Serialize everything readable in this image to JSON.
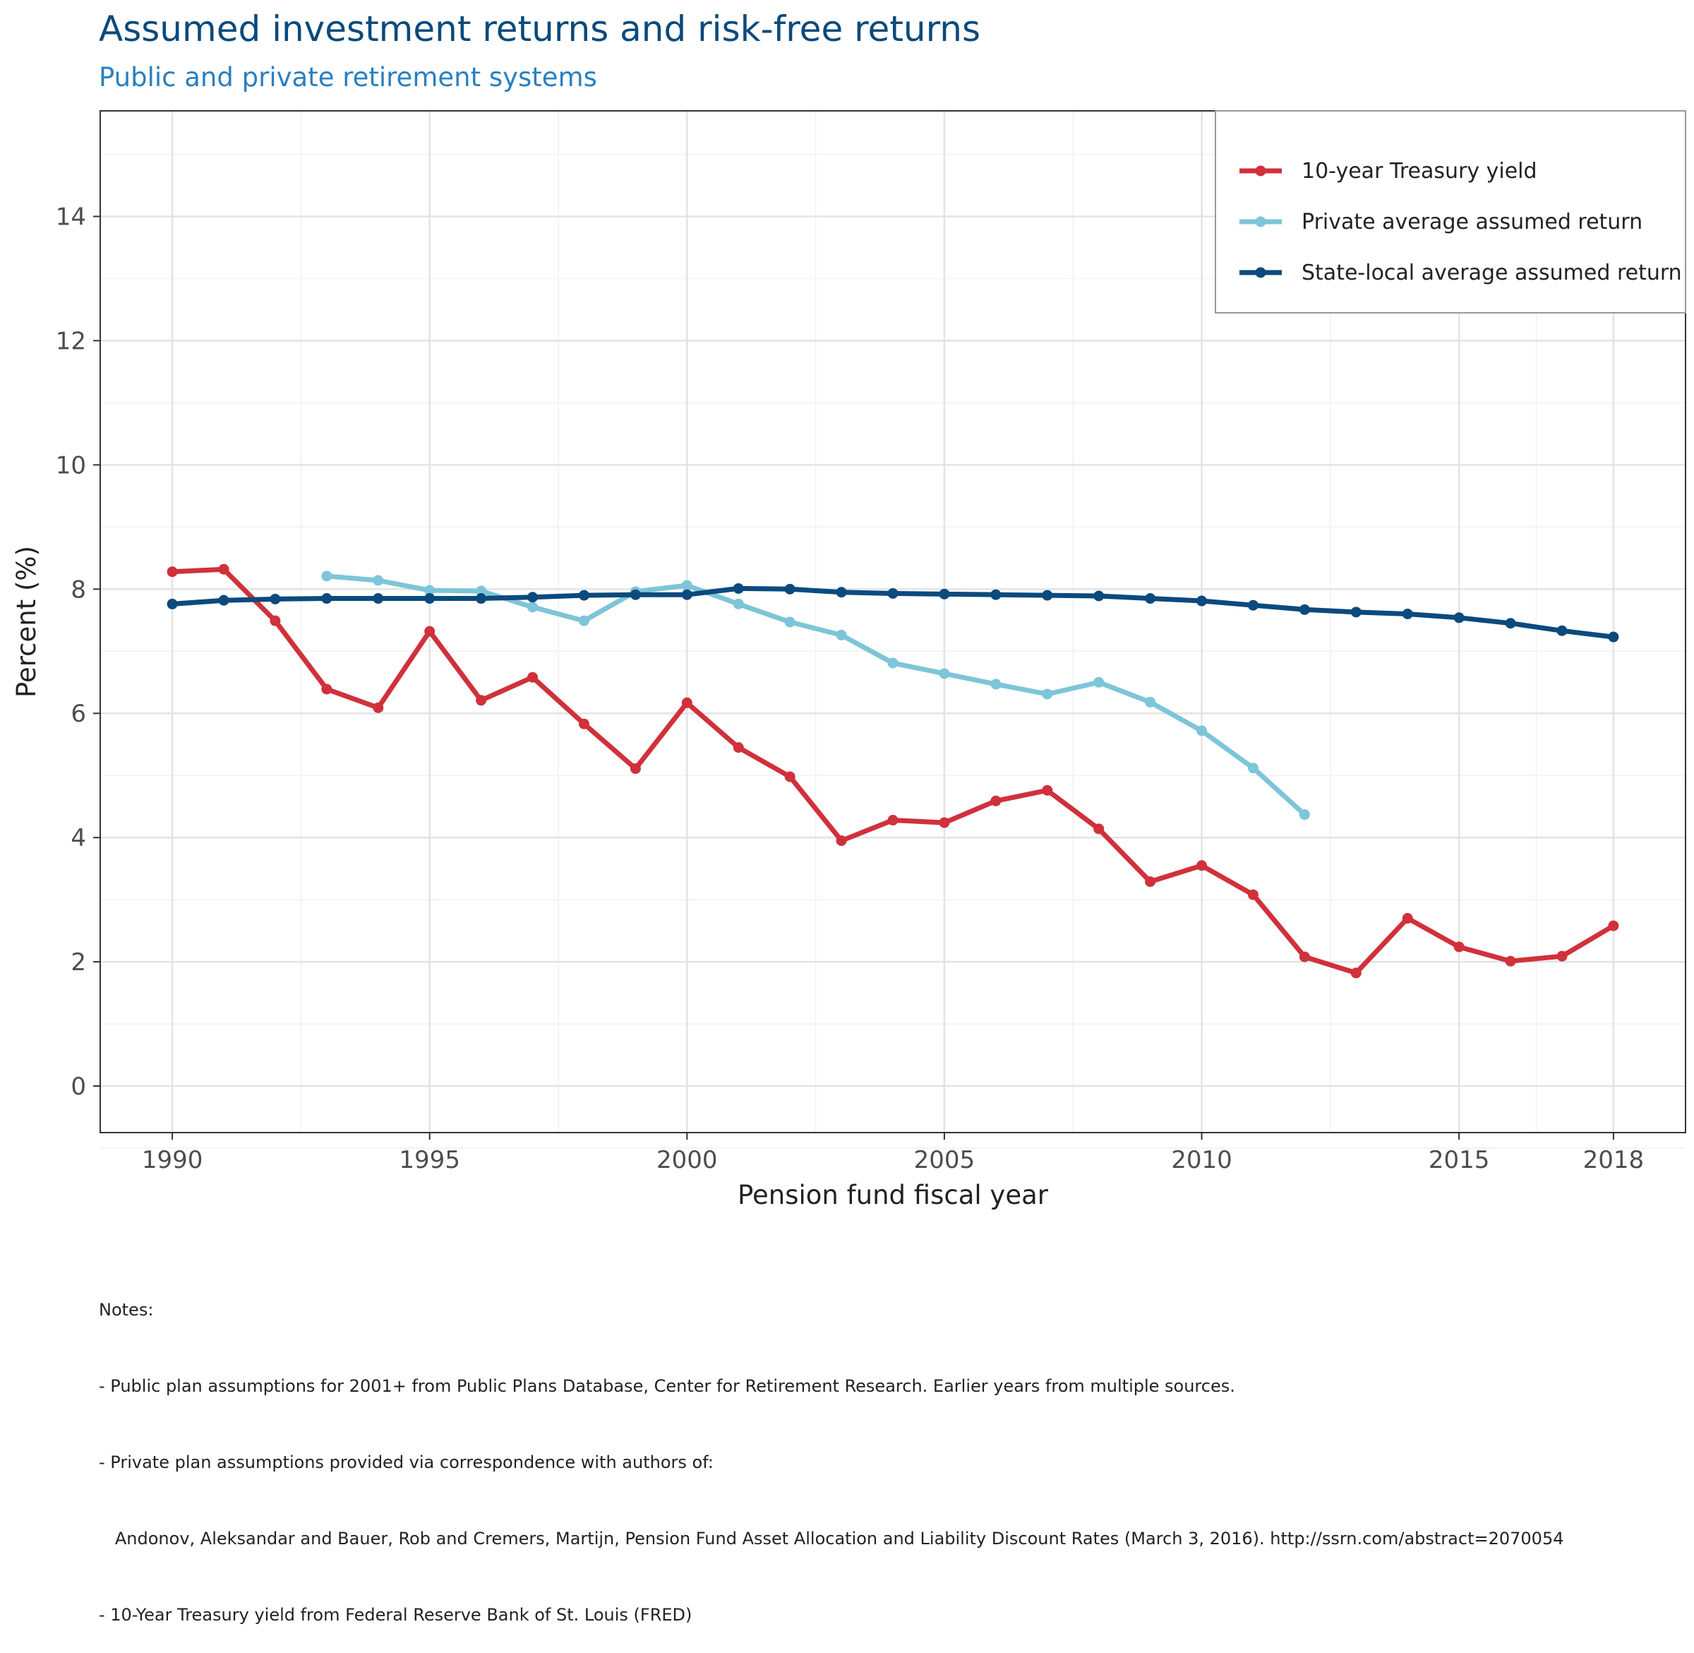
{
  "title": "Assumed investment returns and risk-free returns",
  "subtitle": "Public and private retirement systems",
  "chart_data": {
    "type": "line",
    "title": "Assumed investment returns and risk-free returns",
    "subtitle": "Public and private retirement systems",
    "xlabel": "Pension fund fiscal year",
    "ylabel": "Percent (%)",
    "xlim": [
      1988.6,
      2019.4
    ],
    "ylim": [
      -0.75,
      15.7
    ],
    "x_ticks": [
      1990,
      1995,
      2000,
      2005,
      2010,
      2015,
      2018
    ],
    "x_tick_labels": [
      "1990",
      "1995",
      "2000",
      "2005",
      "2010",
      "2015",
      "2018"
    ],
    "y_ticks": [
      0,
      2,
      4,
      6,
      8,
      10,
      12,
      14
    ],
    "y_tick_labels": [
      "0",
      "2",
      "4",
      "6",
      "8",
      "10",
      "12",
      "14"
    ],
    "grid": true,
    "legend_position": "top-right",
    "series": [
      {
        "name": "10-year Treasury yield",
        "color": "#d0313b",
        "x": [
          1990,
          1991,
          1992,
          1993,
          1994,
          1995,
          1996,
          1997,
          1998,
          1999,
          2000,
          2001,
          2002,
          2003,
          2004,
          2005,
          2006,
          2007,
          2008,
          2009,
          2010,
          2011,
          2012,
          2013,
          2014,
          2015,
          2016,
          2017,
          2018
        ],
        "values": [
          8.28,
          8.32,
          7.49,
          6.39,
          6.09,
          7.32,
          6.21,
          6.58,
          5.83,
          5.11,
          6.17,
          5.45,
          4.98,
          3.95,
          4.28,
          4.24,
          4.59,
          4.76,
          4.14,
          3.29,
          3.55,
          3.08,
          2.08,
          1.82,
          2.7,
          2.24,
          2.01,
          2.09,
          2.58
        ]
      },
      {
        "name": "Private average assumed return",
        "color": "#7dc5d8",
        "x": [
          1993,
          1994,
          1995,
          1996,
          1997,
          1998,
          1999,
          2000,
          2001,
          2002,
          2003,
          2004,
          2005,
          2006,
          2007,
          2008,
          2009,
          2010,
          2011,
          2012
        ],
        "values": [
          8.21,
          8.14,
          7.98,
          7.97,
          7.71,
          7.49,
          7.96,
          8.06,
          7.76,
          7.47,
          7.26,
          6.81,
          6.64,
          6.47,
          6.31,
          6.5,
          6.18,
          5.72,
          5.12,
          4.37
        ]
      },
      {
        "name": "State-local average assumed return",
        "color": "#0b4a7d",
        "x": [
          1990,
          1991,
          1992,
          1993,
          1994,
          1995,
          1996,
          1997,
          1998,
          1999,
          2000,
          2001,
          2002,
          2003,
          2004,
          2005,
          2006,
          2007,
          2008,
          2009,
          2010,
          2011,
          2012,
          2013,
          2014,
          2015,
          2016,
          2017,
          2018
        ],
        "values": [
          7.76,
          7.82,
          7.84,
          7.85,
          7.85,
          7.85,
          7.85,
          7.87,
          7.9,
          7.91,
          7.91,
          8.01,
          8.0,
          7.95,
          7.93,
          7.92,
          7.91,
          7.9,
          7.89,
          7.85,
          7.81,
          7.74,
          7.67,
          7.63,
          7.6,
          7.54,
          7.45,
          7.33,
          7.23
        ]
      }
    ]
  },
  "notes": [
    "Notes:",
    "- Public plan assumptions for 2001+ from Public Plans Database, Center for Retirement Research. Earlier years from multiple sources.",
    "- Private plan assumptions provided via correspondence with authors of:",
    "   Andonov, Aleksandar and Bauer, Rob and Cremers, Martijn, Pension Fund Asset Allocation and Liability Discount Rates (March 3, 2016). http://ssrn.com/abstract=2070054",
    "- 10-Year Treasury yield from Federal Reserve Bank of St. Louis (FRED)"
  ]
}
